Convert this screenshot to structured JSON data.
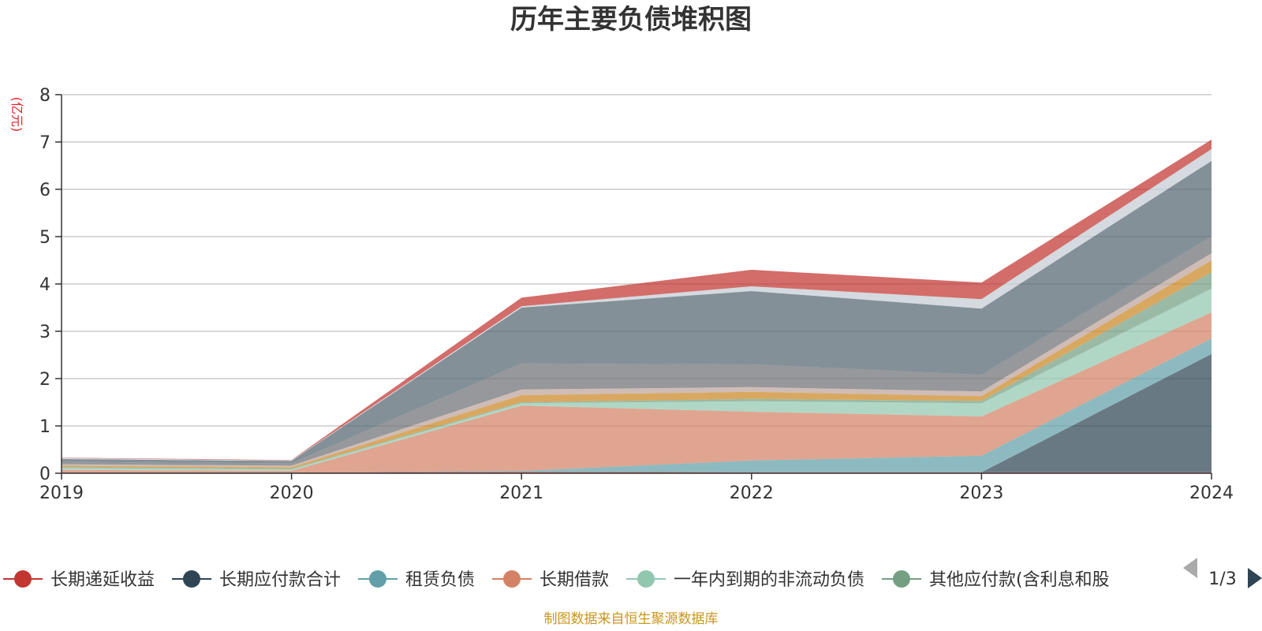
{
  "chart_data": {
    "type": "area",
    "title": "历年主要负债堆积图",
    "unit_label": "(亿元)",
    "x": [
      "2019",
      "2020",
      "2021",
      "2022",
      "2023",
      "2024"
    ],
    "y_ticks": [
      "0",
      "1",
      "2",
      "3",
      "4",
      "5",
      "6",
      "7",
      "8"
    ],
    "ylim": [
      0,
      8
    ],
    "grid": true,
    "stacked": true,
    "series": [
      {
        "name": "长期递延收益",
        "color": "#c23531",
        "values": [
          0.02,
          0.02,
          0.03,
          0.02,
          0.02,
          0.02
        ]
      },
      {
        "name": "长期应付款合计",
        "color": "#2f4554",
        "values": [
          0,
          0,
          0,
          0,
          0,
          2.5
        ]
      },
      {
        "name": "租赁负债",
        "color": "#61a0a8",
        "values": [
          0,
          0,
          0.02,
          0.25,
          0.35,
          0.33
        ]
      },
      {
        "name": "长期借款",
        "color": "#d48265",
        "values": [
          0.05,
          0.03,
          1.38,
          1.03,
          0.83,
          0.55
        ]
      },
      {
        "name": "一年内到期的非流动负债",
        "color": "#91c7ae",
        "values": [
          0.04,
          0.03,
          0.05,
          0.22,
          0.28,
          0.5
        ]
      },
      {
        "name": "其他应付款(含利息和股",
        "color": "#749f83",
        "values": [
          0.02,
          0.02,
          0.02,
          0.05,
          0.05,
          0.35
        ]
      },
      {
        "name": "",
        "color": "#ca8622",
        "values": [
          0.03,
          0.03,
          0.15,
          0.15,
          0.1,
          0.25
        ]
      },
      {
        "name": "",
        "color": "#bda29a",
        "values": [
          0.03,
          0.03,
          0.12,
          0.1,
          0.1,
          0.15
        ]
      },
      {
        "name": "",
        "color": "#6e7074",
        "values": [
          0.05,
          0.05,
          0.55,
          0.48,
          0.35,
          0.35
        ]
      },
      {
        "name": "",
        "color": "#546570",
        "values": [
          0.06,
          0.05,
          1.18,
          1.55,
          1.4,
          1.6
        ]
      },
      {
        "name": "",
        "color": "#c4ccd3",
        "values": [
          0.02,
          0.01,
          0.03,
          0.1,
          0.2,
          0.25
        ]
      },
      {
        "name": "",
        "color": "#c23531",
        "values": [
          0.01,
          0.01,
          0.18,
          0.35,
          0.35,
          0.2
        ]
      }
    ],
    "legend": {
      "position": "bottom",
      "visible_items": [
        "长期递延收益",
        "长期应付款合计",
        "租赁负债",
        "长期借款",
        "一年内到期的非流动负债",
        "其他应付款(含利息和股"
      ],
      "page": "1/3"
    }
  },
  "footer": "制图数据来自恒生聚源数据库",
  "colors": {
    "title": "#333333",
    "unit": "#e0242b",
    "footer": "#c8961e",
    "grid": "#cccccc",
    "axis": "#333333",
    "pager_active": "#2f4554",
    "pager_inactive": "#aaaaaa"
  }
}
